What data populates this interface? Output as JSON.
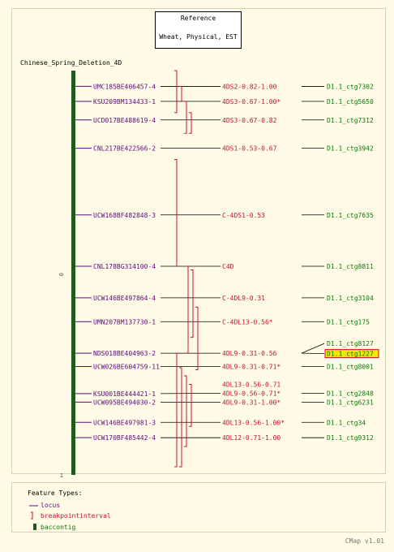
{
  "reference_box": {
    "title": "Reference",
    "subtitle": "Wheat, Physical, EST"
  },
  "map_title": "Chinese_Spring_Deletion_4D",
  "ruler": {
    "top_label": "0",
    "bottom_label": "1"
  },
  "colors": {
    "locus": "#5a0a7a",
    "breakpoint": "#c8102e",
    "contig": "#0a7a0a",
    "bar": "#1f5a1f",
    "highlight": "#f2e600"
  },
  "loci": [
    {
      "name": "UMC185BE406457-4",
      "pos": 0.039
    },
    {
      "name": "KSU209BM134433-1",
      "pos": 0.076
    },
    {
      "name": "UCD017BE488619-4",
      "pos": 0.122
    },
    {
      "name": "CNL217BE422566-2",
      "pos": 0.192
    },
    {
      "name": "UCW168BF482848-3",
      "pos": 0.357
    },
    {
      "name": "CNL178BG314100-4",
      "pos": 0.484
    },
    {
      "name": "UCW146BE497864-4",
      "pos": 0.562
    },
    {
      "name": "UMN207BM137730-1",
      "pos": 0.621
    },
    {
      "name": "NDS018BE404963-2",
      "pos": 0.699
    },
    {
      "name": "UCW026BE604759-11",
      "pos": 0.732
    },
    {
      "name": "KSU001BE444421-1",
      "pos": 0.799
    },
    {
      "name": "UCW095BE494030-2",
      "pos": 0.82
    },
    {
      "name": "UCW146BE497981-3",
      "pos": 0.87
    },
    {
      "name": "UCW170BF485442-4",
      "pos": 0.908
    }
  ],
  "breakpoints": [
    {
      "name": "4DS2-0.82-1.00",
      "y": 0.039
    },
    {
      "name": "4DS3-0.67-1.00*",
      "y": 0.076
    },
    {
      "name": "4DS3-0.67-0.82",
      "y": 0.122
    },
    {
      "name": "4DS1-0.53-0.67",
      "y": 0.192
    },
    {
      "name": "C-4DS1-0.53",
      "y": 0.357
    },
    {
      "name": "C4D",
      "y": 0.484
    },
    {
      "name": "C-4DL9-0.31",
      "y": 0.562
    },
    {
      "name": "C-4DL13-0.56*",
      "y": 0.621
    },
    {
      "name": "4DL9-0.31-0.56",
      "y": 0.699
    },
    {
      "name": "4DL9-0.31-0.71*",
      "y": 0.732
    },
    {
      "name": "4DL13-0.56-0.71",
      "y": 0.776
    },
    {
      "name": "4DL9-0.56-0.71*",
      "y": 0.798
    },
    {
      "name": "4DL9-0.31-1.00*",
      "y": 0.82
    },
    {
      "name": "4DL13-0.56-1.00*",
      "y": 0.87
    },
    {
      "name": "4DL12-0.71-1.00",
      "y": 0.908
    }
  ],
  "intervals": [
    {
      "start": 0.0,
      "end": 0.104
    },
    {
      "start": 0.039,
      "end": 0.076
    },
    {
      "start": 0.076,
      "end": 0.155
    },
    {
      "start": 0.104,
      "end": 0.155
    },
    {
      "start": 0.22,
      "end": 0.484
    },
    {
      "start": 0.484,
      "end": 0.699
    },
    {
      "start": 0.493,
      "end": 0.66
    },
    {
      "start": 0.585,
      "end": 0.74
    },
    {
      "start": 0.699,
      "end": 0.98
    },
    {
      "start": 0.735,
      "end": 0.98
    },
    {
      "start": 0.755,
      "end": 0.93
    },
    {
      "start": 0.776,
      "end": 0.88
    }
  ],
  "contigs": [
    {
      "name": "D1.1_ctg7302",
      "y": 0.039
    },
    {
      "name": "D1.1_ctg5650",
      "y": 0.076
    },
    {
      "name": "D1.1_ctg7312",
      "y": 0.122
    },
    {
      "name": "D1.1_ctg3942",
      "y": 0.192
    },
    {
      "name": "D1.1_ctg7635",
      "y": 0.357
    },
    {
      "name": "D1.1_ctg8811",
      "y": 0.484
    },
    {
      "name": "D1.1_ctg3104",
      "y": 0.562
    },
    {
      "name": "D1.1_ctg175",
      "y": 0.621
    },
    {
      "name": "D1.1_ctg8127",
      "y": 0.675,
      "link_y": 0.699
    },
    {
      "name": "D1.1_ctg1227",
      "y": 0.7,
      "link_y": 0.699,
      "highlight": true
    },
    {
      "name": "D1.1_ctg8001",
      "y": 0.732
    },
    {
      "name": "D1.1_ctg2848",
      "y": 0.798
    },
    {
      "name": "D1.1_ctg6231",
      "y": 0.82
    },
    {
      "name": "D1.1_ctg34",
      "y": 0.87
    },
    {
      "name": "D1.1_ctg9312",
      "y": 0.908
    }
  ],
  "legend": {
    "title": "Feature Types:",
    "items": [
      {
        "label": "locus"
      },
      {
        "label": "breakpointinterval"
      },
      {
        "label": "baccontig"
      }
    ]
  },
  "footer": "CMap v1.01"
}
